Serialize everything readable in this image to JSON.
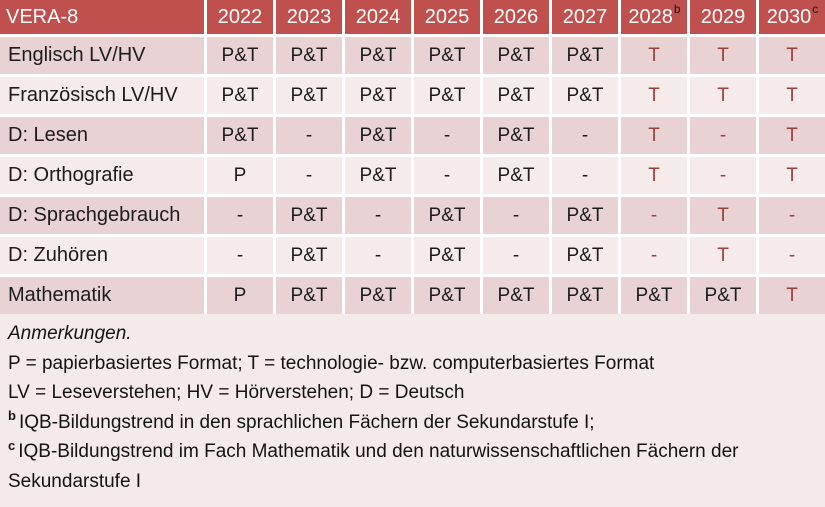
{
  "title": "VERA-8",
  "colors": {
    "header_bg": "#c0504d",
    "header_text": "#ffffff",
    "row_dark_bg": "#e8d2d3",
    "row_light_bg": "#f4ebea",
    "notes_bg": "#f3eae9",
    "red_text": "#9e3f3c",
    "black_text": "#1c1c1c",
    "grid_lines": "#ffffff"
  },
  "table": {
    "header": {
      "label": "VERA-8",
      "years": [
        {
          "label": "2022",
          "sup": ""
        },
        {
          "label": "2023",
          "sup": ""
        },
        {
          "label": "2024",
          "sup": ""
        },
        {
          "label": "2025",
          "sup": ""
        },
        {
          "label": "2026",
          "sup": ""
        },
        {
          "label": "2027",
          "sup": ""
        },
        {
          "label": "2028",
          "sup": "b"
        },
        {
          "label": "2029",
          "sup": ""
        },
        {
          "label": "2030",
          "sup": "c"
        }
      ]
    },
    "rows": [
      {
        "label": "Englisch LV/HV",
        "shade": "dark",
        "cells": [
          {
            "text": "P&T"
          },
          {
            "text": "P&T"
          },
          {
            "text": "P&T"
          },
          {
            "text": "P&T"
          },
          {
            "text": "P&T"
          },
          {
            "text": "P&T"
          },
          {
            "text": "T",
            "red": true
          },
          {
            "text": "T",
            "red": true
          },
          {
            "text": "T",
            "red": true
          }
        ]
      },
      {
        "label": "Französisch LV/HV",
        "shade": "light",
        "cells": [
          {
            "text": "P&T"
          },
          {
            "text": "P&T"
          },
          {
            "text": "P&T"
          },
          {
            "text": "P&T"
          },
          {
            "text": "P&T"
          },
          {
            "text": "P&T"
          },
          {
            "text": "T",
            "red": true
          },
          {
            "text": "T",
            "red": true
          },
          {
            "text": "T",
            "red": true
          }
        ]
      },
      {
        "label": "D: Lesen",
        "shade": "dark",
        "cells": [
          {
            "text": "P&T"
          },
          {
            "text": "-"
          },
          {
            "text": "P&T"
          },
          {
            "text": "-"
          },
          {
            "text": "P&T"
          },
          {
            "text": "-"
          },
          {
            "text": "T",
            "red": true
          },
          {
            "text": "-",
            "red": true
          },
          {
            "text": "T",
            "red": true
          }
        ]
      },
      {
        "label": "D: Orthografie",
        "shade": "light",
        "cells": [
          {
            "text": "P"
          },
          {
            "text": "-"
          },
          {
            "text": "P&T"
          },
          {
            "text": "-"
          },
          {
            "text": "P&T"
          },
          {
            "text": "-"
          },
          {
            "text": "T",
            "red": true
          },
          {
            "text": "-",
            "red": true
          },
          {
            "text": "T",
            "red": true
          }
        ]
      },
      {
        "label": "D: Sprachgebrauch",
        "shade": "dark",
        "cells": [
          {
            "text": "-"
          },
          {
            "text": "P&T"
          },
          {
            "text": "-"
          },
          {
            "text": "P&T"
          },
          {
            "text": "-"
          },
          {
            "text": "P&T"
          },
          {
            "text": "-",
            "red": true
          },
          {
            "text": "T",
            "red": true
          },
          {
            "text": "-",
            "red": true
          }
        ]
      },
      {
        "label": "D: Zuhören",
        "shade": "light",
        "cells": [
          {
            "text": "-"
          },
          {
            "text": "P&T"
          },
          {
            "text": "-"
          },
          {
            "text": "P&T"
          },
          {
            "text": "-"
          },
          {
            "text": "P&T"
          },
          {
            "text": "-",
            "red": true
          },
          {
            "text": "T",
            "red": true
          },
          {
            "text": "-",
            "red": true
          }
        ]
      },
      {
        "label": "Mathematik",
        "shade": "dark",
        "cells": [
          {
            "text": "P"
          },
          {
            "text": "P&T"
          },
          {
            "text": "P&T"
          },
          {
            "text": "P&T"
          },
          {
            "text": "P&T"
          },
          {
            "text": "P&T"
          },
          {
            "text": "P&T"
          },
          {
            "text": "P&T"
          },
          {
            "text": "T",
            "red": true
          }
        ]
      }
    ]
  },
  "notes": {
    "heading": "Anmerkungen.",
    "lines": [
      {
        "sup": "",
        "text": "P = papierbasiertes Format; T = technologie- bzw. computerbasiertes Format"
      },
      {
        "sup": "",
        "text": "LV = Leseverstehen; HV = Hörverstehen; D = Deutsch"
      },
      {
        "sup": "b",
        "text": "IQB-Bildungstrend in den sprachlichen Fächern der Sekundarstufe I;"
      },
      {
        "sup": "c",
        "text": "IQB-Bildungstrend im Fach Mathematik und den naturwissenschaftlichen Fächern der Sekundarstufe I"
      }
    ]
  }
}
